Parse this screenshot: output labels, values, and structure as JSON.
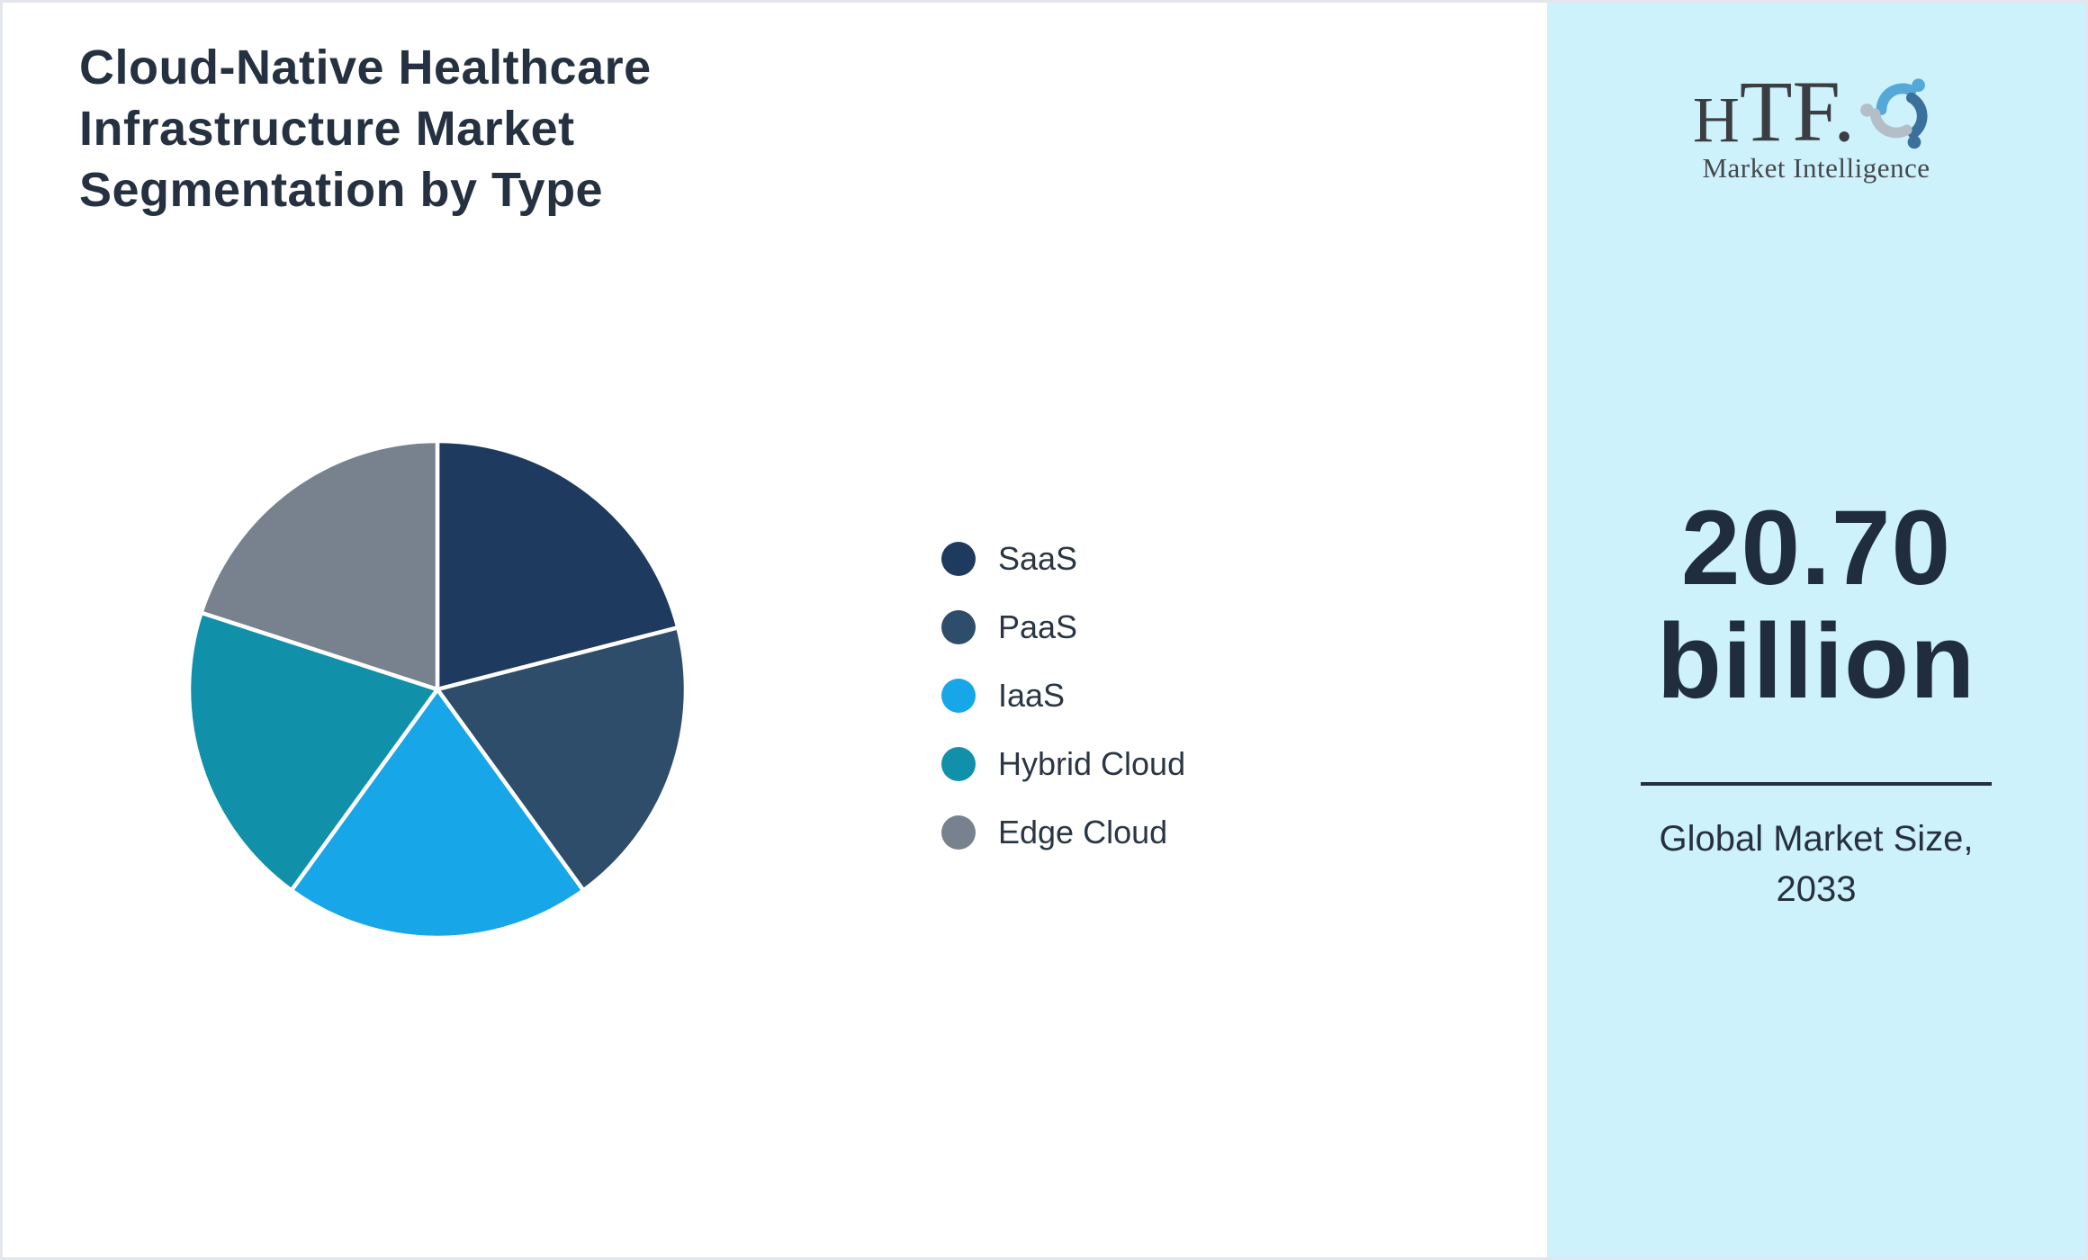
{
  "title": "Cloud-Native Healthcare Infrastructure Market Segmentation by Type",
  "chart_data": {
    "type": "pie",
    "title": "Cloud-Native Healthcare Infrastructure Market Segmentation by Type",
    "categories": [
      "SaaS",
      "PaaS",
      "IaaS",
      "Hybrid Cloud",
      "Edge Cloud"
    ],
    "values": [
      21,
      19,
      20,
      20,
      20
    ],
    "values_note": "percent share estimated from slice angles; no numeric labels shown",
    "colors": [
      "#1e3a5e",
      "#2e4d6b",
      "#17a6e8",
      "#1190a9",
      "#78828f"
    ],
    "start_angle_deg": 0,
    "direction": "clockwise",
    "legend_position": "right",
    "slice_stroke_color": "#ffffff"
  },
  "logo": {
    "word_part1": "H",
    "word_part2": "TF.",
    "subtitle": "Market Intelligence",
    "swirl_colors": [
      "#55a8d7",
      "#3a719c",
      "#b4bec8"
    ]
  },
  "panel": {
    "value": "20.70",
    "unit": "billion",
    "caption_line1": "Global Market Size,",
    "caption_line2": "2033",
    "background": "#cdf2fb"
  },
  "colors": {
    "page_background": "#ffffff",
    "border": "#e3e6ec",
    "title_text": "#253140",
    "legend_text": "#2b3644",
    "number_text": "#1f2d3d",
    "divider": "#223140"
  }
}
